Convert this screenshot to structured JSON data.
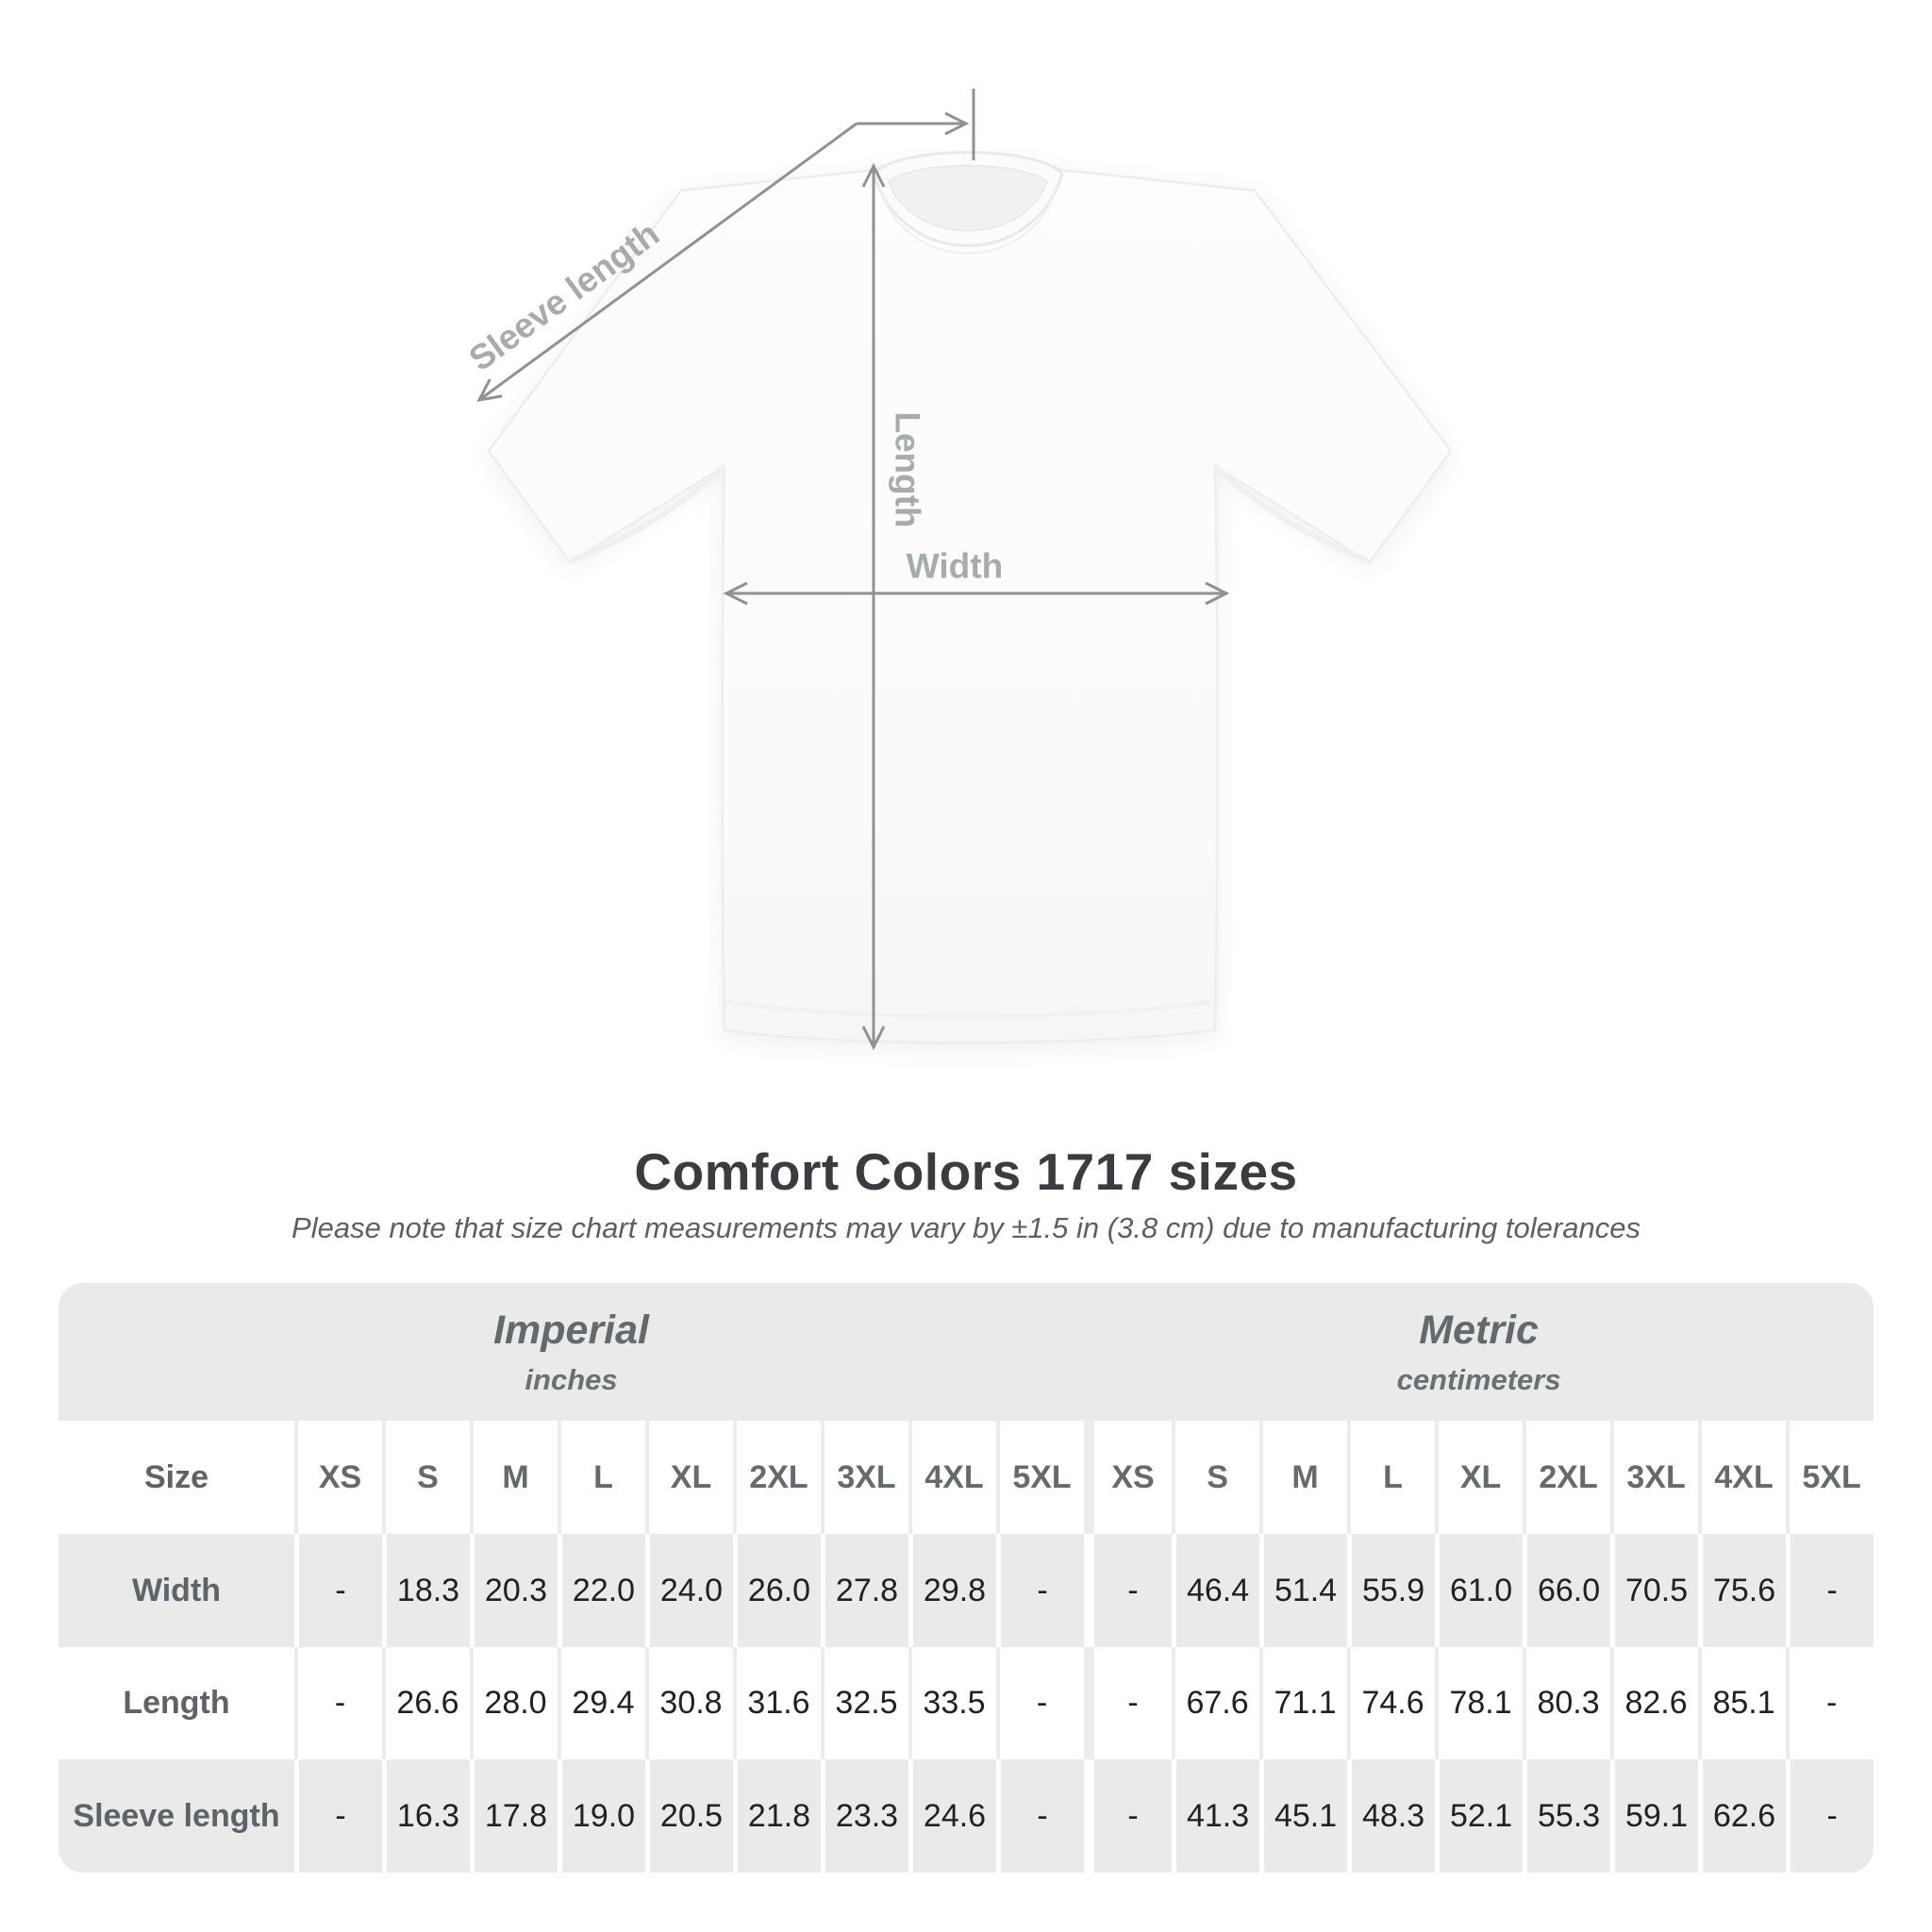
{
  "diagram": {
    "labels": {
      "sleeve": "Sleeve length",
      "length": "Length",
      "width": "Width"
    }
  },
  "title": "Comfort Colors 1717 sizes",
  "subtitle": "Please note that size chart measurements may vary by ±1.5 in (3.8 cm) due to manufacturing tolerances",
  "table": {
    "size_label": "Size",
    "groups": [
      {
        "name": "Imperial",
        "unit": "inches"
      },
      {
        "name": "Metric",
        "unit": "centimeters"
      }
    ],
    "sizes": [
      "XS",
      "S",
      "M",
      "L",
      "XL",
      "2XL",
      "3XL",
      "4XL",
      "5XL"
    ],
    "rows": [
      {
        "label": "Width",
        "imperial": [
          "-",
          "18.3",
          "20.3",
          "22.0",
          "24.0",
          "26.0",
          "27.8",
          "29.8",
          "-"
        ],
        "metric": [
          "-",
          "46.4",
          "51.4",
          "55.9",
          "61.0",
          "66.0",
          "70.5",
          "75.6",
          "-"
        ]
      },
      {
        "label": "Length",
        "imperial": [
          "-",
          "26.6",
          "28.0",
          "29.4",
          "30.8",
          "31.6",
          "32.5",
          "33.5",
          "-"
        ],
        "metric": [
          "-",
          "67.6",
          "71.1",
          "74.6",
          "78.1",
          "80.3",
          "82.6",
          "85.1",
          "-"
        ]
      },
      {
        "label": "Sleeve length",
        "imperial": [
          "-",
          "16.3",
          "17.8",
          "19.0",
          "20.5",
          "21.8",
          "23.3",
          "24.6",
          "-"
        ],
        "metric": [
          "-",
          "41.3",
          "45.1",
          "48.3",
          "52.1",
          "55.3",
          "59.1",
          "62.6",
          "-"
        ]
      }
    ]
  },
  "colors": {
    "table_band": "#e9eaea",
    "value_text": "#1f2122",
    "header_text": "#63696c",
    "diagram_label": "#a6abae",
    "arrow": "#8d9295",
    "title_text": "#3a3d3f"
  }
}
